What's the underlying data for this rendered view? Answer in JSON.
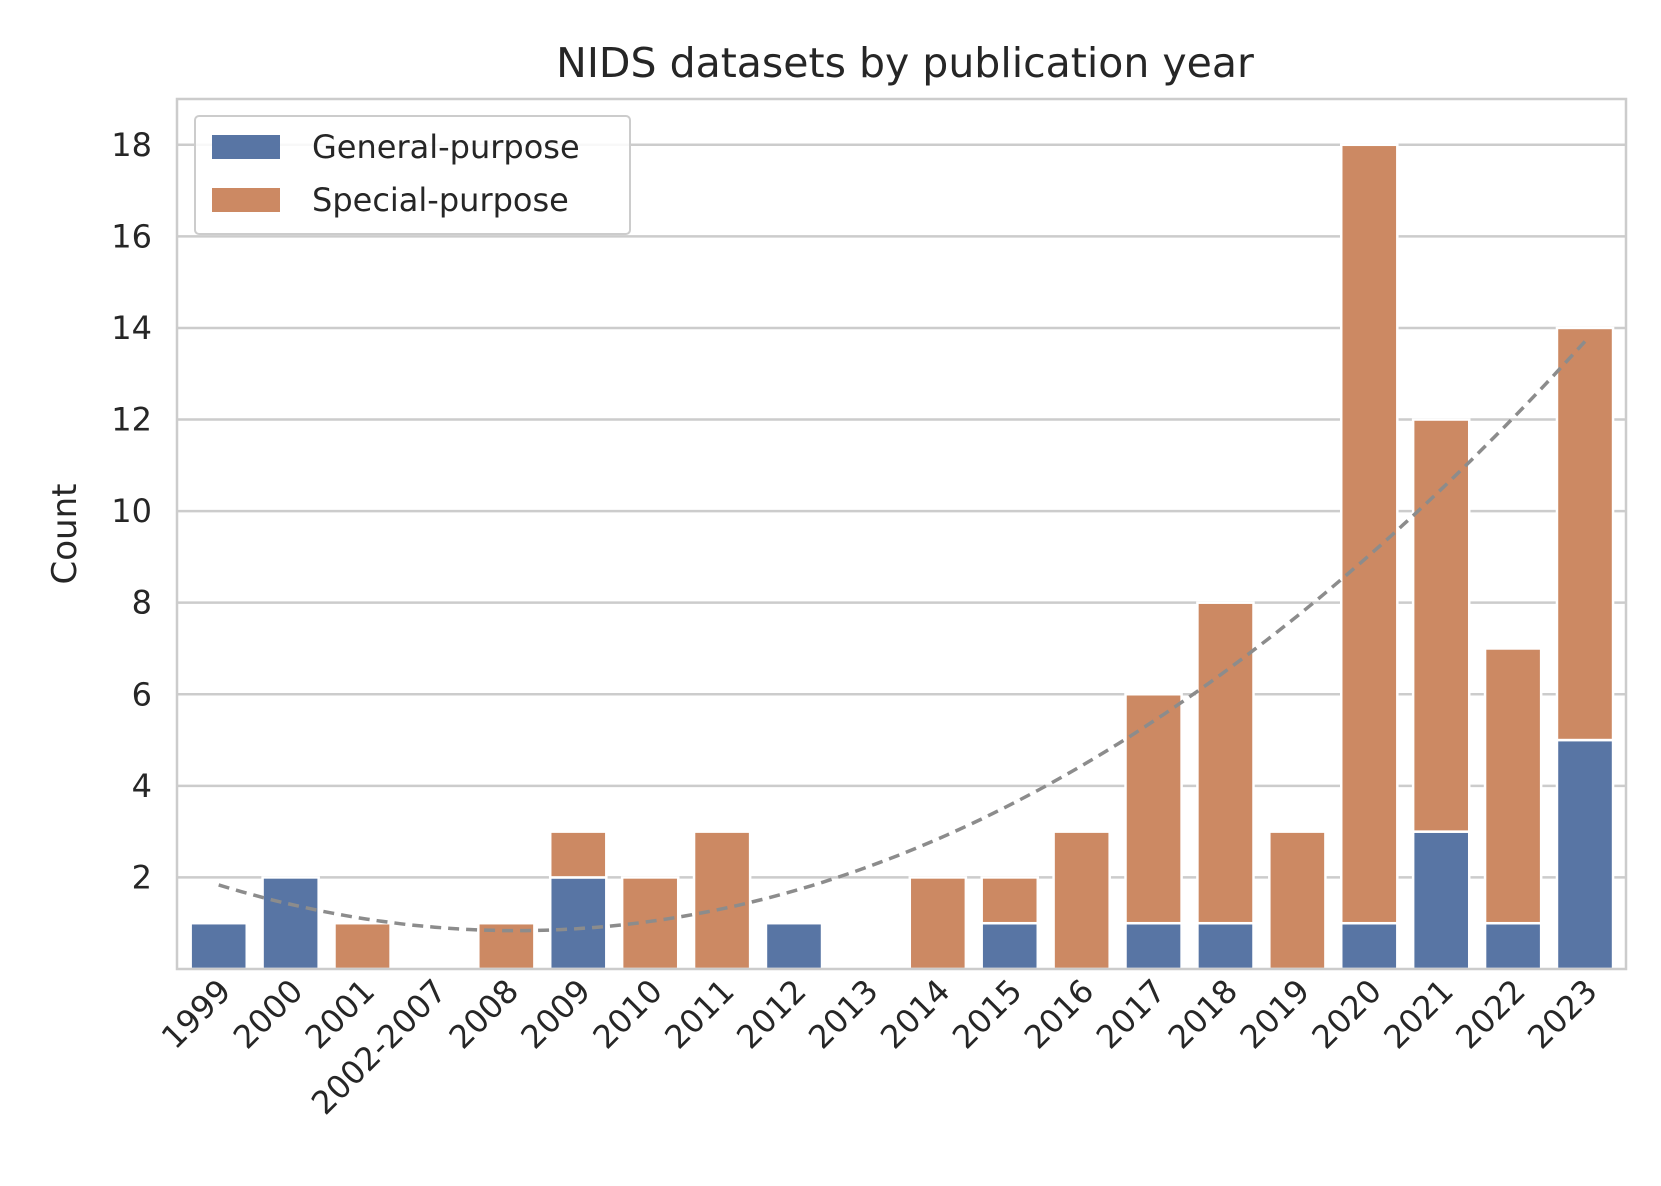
{
  "chart_data": {
    "type": "bar",
    "stacked": true,
    "title": "NIDS datasets by publication year",
    "xlabel": "",
    "ylabel": "Count",
    "ylim": [
      0,
      19
    ],
    "yticks": [
      2,
      4,
      6,
      8,
      10,
      12,
      14,
      16,
      18
    ],
    "grid": true,
    "legend_position": "top-left",
    "categories": [
      "1999",
      "2000",
      "2001",
      "2002-2007",
      "2008",
      "2009",
      "2010",
      "2011",
      "2012",
      "2013",
      "2014",
      "2015",
      "2016",
      "2017",
      "2018",
      "2019",
      "2020",
      "2021",
      "2022",
      "2023"
    ],
    "series": [
      {
        "name": "General-purpose",
        "color": "#5875a4",
        "values": [
          1,
          2,
          0,
          0,
          0,
          2,
          0,
          0,
          1,
          0,
          0,
          1,
          0,
          1,
          1,
          0,
          1,
          3,
          1,
          5
        ]
      },
      {
        "name": "Special-purpose",
        "color": "#cc8963",
        "values": [
          0,
          0,
          1,
          0,
          1,
          1,
          2,
          3,
          0,
          0,
          2,
          1,
          3,
          5,
          7,
          3,
          17,
          9,
          6,
          9
        ]
      }
    ],
    "trend": {
      "type": "quadratic-fit",
      "style": "dashed",
      "color": "#8c8c8c"
    }
  }
}
